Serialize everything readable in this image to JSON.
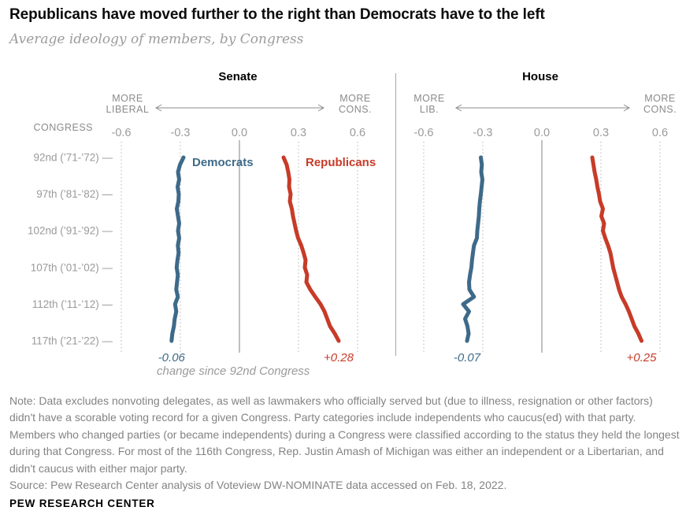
{
  "palette": {
    "democrat_blue": "#3E6A89",
    "republican_red": "#C73B28",
    "gridline_dotted": "#b6b6b6",
    "zero_axis_line": "#ababab",
    "panel_divider": "#a6a6a6",
    "hint_gray": "#8b8b8b",
    "tick_gray": "#9a9a9a"
  },
  "header": {
    "title": "Republicans have moved further to the right than Democrats have to the left",
    "subtitle": "Average ideology of members, by Congress"
  },
  "chart_data": {
    "type": "line",
    "orientation": "vertical-time-axis",
    "title": "Average ideology of members, by Congress",
    "x_axis": {
      "ticks": [
        "-0.6",
        "-0.3",
        "0.0",
        "0.3",
        "0.6"
      ],
      "values": [
        -0.6,
        -0.3,
        0.0,
        0.3,
        0.6
      ],
      "range": [
        -0.6,
        0.6
      ]
    },
    "y_axis_label": "CONGRESS",
    "congress_range": [
      92,
      117
    ],
    "row_labels": [
      {
        "congress": 92,
        "label": "92nd (’71-’72) —"
      },
      {
        "congress": 97,
        "label": "97th (’81-’82) —"
      },
      {
        "congress": 102,
        "label": "102nd (’91-’92) —"
      },
      {
        "congress": 107,
        "label": "107th (’01-’02) —"
      },
      {
        "congress": 112,
        "label": "112th (’11-’12) —"
      },
      {
        "congress": 117,
        "label": "117th (’21-’22) —"
      }
    ],
    "annotation": "change since 92nd Congress",
    "panels": [
      {
        "title": "Senate",
        "left_hint_lines": [
          "MORE",
          "LIBERAL"
        ],
        "right_hint_lines": [
          "MORE",
          "CONS."
        ],
        "series": [
          {
            "name": "Democrats",
            "color": "#3E6A89",
            "change_label": "-0.06",
            "values": [
              -0.284,
              -0.302,
              -0.312,
              -0.306,
              -0.314,
              -0.308,
              -0.31,
              -0.318,
              -0.312,
              -0.306,
              -0.312,
              -0.306,
              -0.313,
              -0.309,
              -0.315,
              -0.319,
              -0.313,
              -0.317,
              -0.321,
              -0.313,
              -0.327,
              -0.321,
              -0.329,
              -0.333,
              -0.341,
              -0.345
            ]
          },
          {
            "name": "Republicans",
            "color": "#C73B28",
            "change_label": "+0.28",
            "values": [
              0.224,
              0.24,
              0.248,
              0.254,
              0.252,
              0.26,
              0.256,
              0.266,
              0.272,
              0.28,
              0.288,
              0.298,
              0.314,
              0.326,
              0.336,
              0.332,
              0.344,
              0.34,
              0.36,
              0.385,
              0.412,
              0.432,
              0.446,
              0.46,
              0.484,
              0.504
            ]
          }
        ]
      },
      {
        "title": "House",
        "left_hint_lines": [
          "MORE",
          "LIB."
        ],
        "right_hint_lines": [
          "MORE",
          "CONS."
        ],
        "series": [
          {
            "name": "Democrats",
            "color": "#3E6A89",
            "change_label": "-0.07",
            "values": [
              -0.31,
              -0.305,
              -0.308,
              -0.302,
              -0.306,
              -0.31,
              -0.315,
              -0.318,
              -0.32,
              -0.324,
              -0.328,
              -0.33,
              -0.345,
              -0.35,
              -0.355,
              -0.358,
              -0.365,
              -0.37,
              -0.368,
              -0.345,
              -0.4,
              -0.37,
              -0.39,
              -0.378,
              -0.372,
              -0.38
            ]
          },
          {
            "name": "Republicans",
            "color": "#C73B28",
            "change_label": "+0.25",
            "values": [
              0.256,
              0.262,
              0.268,
              0.276,
              0.282,
              0.29,
              0.296,
              0.31,
              0.302,
              0.316,
              0.31,
              0.322,
              0.336,
              0.348,
              0.355,
              0.362,
              0.372,
              0.382,
              0.392,
              0.405,
              0.425,
              0.442,
              0.456,
              0.47,
              0.49,
              0.506
            ]
          }
        ]
      }
    ]
  },
  "footer": {
    "note": "Note: Data excludes nonvoting delegates, as well as lawmakers who officially served but (due to illness, resignation or other factors) didn't have a scorable voting record for a given Congress. Party categories include independents who caucus(ed) with that party. Members who changed parties (or became independents) during a Congress were classified according to the status they held the longest during that Congress. For most of the 116th Congress, Rep. Justin Amash of Michigan was either an independent or a Libertarian, and didn't caucus with either major party.",
    "source": "Source: Pew Research Center analysis of Voteview DW-NOMINATE data accessed on Feb. 18, 2022.",
    "brand": "PEW RESEARCH CENTER"
  }
}
